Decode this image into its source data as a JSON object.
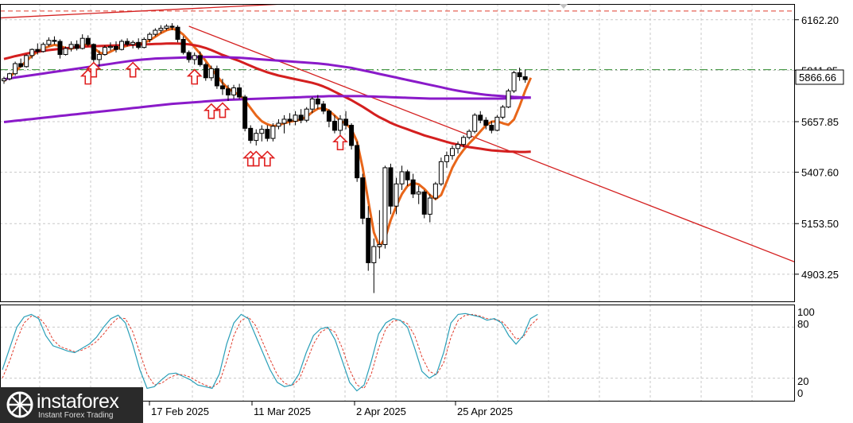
{
  "chart_data": {
    "type": "candlestick",
    "y_axis": {
      "ticks": [
        6162.2,
        5911.95,
        5657.85,
        5407.6,
        5153.5,
        4903.25
      ],
      "tick_labels": [
        "6162.20",
        "5911.95",
        "5657.85",
        "5407.60",
        "5153.50",
        "4903.25"
      ],
      "ylim": [
        4765,
        6240
      ]
    },
    "x_axis": {
      "tick_labels": [
        "17 Feb 2025",
        "11 Mar 2025",
        "2 Apr 2025",
        "25 Apr 2025"
      ]
    },
    "current_price": "5866.66",
    "hlines": [
      {
        "value": 6205,
        "style": "dashed",
        "color": "#e03c2c"
      },
      {
        "value": 5915,
        "style": "dashdot",
        "color": "#2e8b2e"
      }
    ],
    "candles": [
      [
        5860,
        5880,
        5845,
        5870
      ],
      [
        5870,
        5900,
        5862,
        5895
      ],
      [
        5895,
        5955,
        5885,
        5945
      ],
      [
        5945,
        5970,
        5925,
        5930
      ],
      [
        5930,
        5990,
        5925,
        5985
      ],
      [
        5985,
        6020,
        5970,
        6015
      ],
      [
        6015,
        6045,
        5990,
        6005
      ],
      [
        6005,
        6050,
        6000,
        6040
      ],
      [
        6040,
        6075,
        6030,
        6060
      ],
      [
        6060,
        6080,
        6040,
        6055
      ],
      [
        6055,
        6065,
        5970,
        5990
      ],
      [
        5990,
        6030,
        5985,
        6020
      ],
      [
        6020,
        6055,
        6005,
        6040
      ],
      [
        6040,
        6060,
        6010,
        6020
      ],
      [
        6020,
        6090,
        6015,
        6070
      ],
      [
        6070,
        6085,
        6030,
        6040
      ],
      [
        6040,
        6045,
        5950,
        5965
      ],
      [
        5965,
        6010,
        5930,
        5990
      ],
      [
        5990,
        6035,
        5985,
        6025
      ],
      [
        6025,
        6050,
        6010,
        6030
      ],
      [
        6030,
        6055,
        6000,
        6015
      ],
      [
        6015,
        6065,
        6010,
        6055
      ],
      [
        6055,
        6070,
        6030,
        6040
      ],
      [
        6040,
        6060,
        6020,
        6050
      ],
      [
        6050,
        6070,
        6015,
        6025
      ],
      [
        6025,
        6075,
        6020,
        6065
      ],
      [
        6065,
        6100,
        6050,
        6090
      ],
      [
        6090,
        6120,
        6080,
        6110
      ],
      [
        6110,
        6135,
        6095,
        6120
      ],
      [
        6120,
        6140,
        6110,
        6130
      ],
      [
        6130,
        6145,
        6110,
        6125
      ],
      [
        6125,
        6135,
        6050,
        6065
      ],
      [
        6065,
        6080,
        5990,
        6000
      ],
      [
        6000,
        6010,
        5950,
        5965
      ],
      [
        5965,
        6000,
        5940,
        5985
      ],
      [
        5985,
        6005,
        5930,
        5940
      ],
      [
        5940,
        5950,
        5860,
        5875
      ],
      [
        5875,
        5935,
        5860,
        5920
      ],
      [
        5920,
        5935,
        5820,
        5835
      ],
      [
        5835,
        5870,
        5790,
        5820
      ],
      [
        5820,
        5840,
        5760,
        5790
      ],
      [
        5790,
        5840,
        5770,
        5825
      ],
      [
        5825,
        5845,
        5770,
        5780
      ],
      [
        5780,
        5790,
        5610,
        5625
      ],
      [
        5625,
        5640,
        5550,
        5565
      ],
      [
        5565,
        5620,
        5540,
        5600
      ],
      [
        5600,
        5640,
        5560,
        5620
      ],
      [
        5620,
        5640,
        5560,
        5575
      ],
      [
        5575,
        5650,
        5560,
        5635
      ],
      [
        5635,
        5670,
        5620,
        5650
      ],
      [
        5650,
        5690,
        5600,
        5670
      ],
      [
        5670,
        5700,
        5640,
        5660
      ],
      [
        5660,
        5710,
        5640,
        5690
      ],
      [
        5690,
        5720,
        5650,
        5665
      ],
      [
        5665,
        5730,
        5655,
        5720
      ],
      [
        5720,
        5780,
        5700,
        5770
      ],
      [
        5770,
        5790,
        5720,
        5745
      ],
      [
        5745,
        5760,
        5695,
        5710
      ],
      [
        5710,
        5720,
        5630,
        5660
      ],
      [
        5660,
        5690,
        5600,
        5615
      ],
      [
        5615,
        5690,
        5570,
        5670
      ],
      [
        5670,
        5710,
        5620,
        5640
      ],
      [
        5640,
        5650,
        5520,
        5540
      ],
      [
        5540,
        5560,
        5360,
        5380
      ],
      [
        5380,
        5400,
        5150,
        5180
      ],
      [
        5180,
        5240,
        4920,
        4960
      ],
      [
        4960,
        5080,
        4810,
        5040
      ],
      [
        5040,
        5220,
        4980,
        5050
      ],
      [
        5050,
        5440,
        5030,
        5430
      ],
      [
        5430,
        5450,
        5200,
        5240
      ],
      [
        5240,
        5380,
        5200,
        5350
      ],
      [
        5350,
        5440,
        5320,
        5410
      ],
      [
        5410,
        5420,
        5340,
        5370
      ],
      [
        5370,
        5400,
        5280,
        5300
      ],
      [
        5300,
        5340,
        5250,
        5310
      ],
      [
        5310,
        5320,
        5180,
        5200
      ],
      [
        5200,
        5300,
        5160,
        5280
      ],
      [
        5280,
        5360,
        5270,
        5350
      ],
      [
        5350,
        5480,
        5340,
        5460
      ],
      [
        5460,
        5510,
        5430,
        5490
      ],
      [
        5490,
        5540,
        5470,
        5525
      ],
      [
        5525,
        5560,
        5500,
        5545
      ],
      [
        5545,
        5590,
        5530,
        5580
      ],
      [
        5580,
        5620,
        5570,
        5610
      ],
      [
        5610,
        5700,
        5600,
        5690
      ],
      [
        5690,
        5710,
        5650,
        5665
      ],
      [
        5665,
        5680,
        5620,
        5640
      ],
      [
        5640,
        5660,
        5600,
        5615
      ],
      [
        5615,
        5690,
        5610,
        5680
      ],
      [
        5680,
        5740,
        5670,
        5730
      ],
      [
        5730,
        5820,
        5725,
        5810
      ],
      [
        5810,
        5910,
        5800,
        5900
      ],
      [
        5900,
        5925,
        5860,
        5880
      ],
      [
        5880,
        5915,
        5850,
        5866
      ]
    ],
    "overlays": [
      {
        "type": "moving_average",
        "color": "#e8661a",
        "values": [
          5860,
          5878,
          5905,
          5932,
          5958,
          5984,
          6004,
          6018,
          6030,
          6038,
          6032,
          6022,
          6019,
          6026,
          6035,
          6040,
          6024,
          6000,
          5992,
          6004,
          6018,
          6026,
          6034,
          6040,
          6042,
          6048,
          6060,
          6078,
          6096,
          6110,
          6118,
          6110,
          6088,
          6058,
          6026,
          5994,
          5958,
          5920,
          5885,
          5850,
          5822,
          5805,
          5790,
          5762,
          5725,
          5688,
          5660,
          5645,
          5636,
          5640,
          5650,
          5658,
          5662,
          5668,
          5682,
          5705,
          5722,
          5726,
          5712,
          5688,
          5662,
          5648,
          5620,
          5560,
          5430,
          5265,
          5110,
          5040,
          5080,
          5170,
          5240,
          5300,
          5340,
          5355,
          5348,
          5325,
          5295,
          5275,
          5295,
          5360,
          5430,
          5480,
          5518,
          5550,
          5578,
          5610,
          5640,
          5658,
          5660,
          5650,
          5642,
          5668,
          5735,
          5810,
          5875
        ]
      },
      {
        "type": "moving_average",
        "color": "#d41f1f",
        "values": [
          5968,
          5975,
          5982,
          5988,
          5994,
          6000,
          6004,
          6008,
          6012,
          6015,
          6018,
          6021,
          6024,
          6026,
          6028,
          6030,
          6031,
          6032,
          6033,
          6034,
          6035,
          6036,
          6037,
          6038,
          6039,
          6040,
          6041,
          6042,
          6043,
          6044,
          6045,
          6044,
          6043,
          6040,
          6036,
          6030,
          6022,
          6012,
          6000,
          5988,
          5978,
          5968,
          5958,
          5946,
          5934,
          5922,
          5912,
          5902,
          5894,
          5886,
          5880,
          5874,
          5868,
          5862,
          5856,
          5850,
          5842,
          5832,
          5820,
          5806,
          5792,
          5778,
          5764,
          5748,
          5732,
          5714,
          5696,
          5680,
          5666,
          5652,
          5640,
          5630,
          5620,
          5610,
          5600,
          5590,
          5582,
          5574,
          5566,
          5558,
          5550,
          5544,
          5538,
          5532,
          5528,
          5524,
          5520,
          5516,
          5514,
          5512,
          5510,
          5509,
          5508,
          5508,
          5509
        ]
      },
      {
        "type": "moving_average",
        "color": "#8a1ac9",
        "values": [
          5868,
          5872,
          5876,
          5880,
          5884,
          5888,
          5892,
          5896,
          5900,
          5904,
          5908,
          5912,
          5916,
          5920,
          5924,
          5928,
          5932,
          5936,
          5940,
          5944,
          5948,
          5952,
          5956,
          5960,
          5963,
          5966,
          5968,
          5970,
          5971,
          5972,
          5973,
          5974,
          5975,
          5976,
          5977,
          5978,
          5978,
          5978,
          5978,
          5977,
          5976,
          5975,
          5974,
          5972,
          5970,
          5968,
          5966,
          5964,
          5962,
          5960,
          5958,
          5956,
          5954,
          5952,
          5950,
          5948,
          5946,
          5943,
          5940,
          5936,
          5932,
          5928,
          5924,
          5918,
          5912,
          5906,
          5900,
          5894,
          5888,
          5882,
          5876,
          5870,
          5864,
          5858,
          5852,
          5846,
          5840,
          5834,
          5828,
          5822,
          5816,
          5811,
          5806,
          5802,
          5798,
          5794,
          5791,
          5788,
          5786,
          5784,
          5782,
          5780,
          5779,
          5778,
          5777
        ]
      },
      {
        "type": "moving_average",
        "color": "#8a1ac9",
        "values": [
          5656,
          5659,
          5662,
          5665,
          5668,
          5671,
          5674,
          5677,
          5680,
          5683,
          5686,
          5689,
          5692,
          5695,
          5698,
          5701,
          5704,
          5707,
          5710,
          5713,
          5716,
          5719,
          5722,
          5725,
          5728,
          5731,
          5734,
          5737,
          5740,
          5743,
          5746,
          5748,
          5750,
          5752,
          5754,
          5756,
          5758,
          5760,
          5762,
          5764,
          5766,
          5767,
          5768,
          5769,
          5770,
          5771,
          5772,
          5773,
          5774,
          5775,
          5776,
          5777,
          5778,
          5779,
          5780,
          5781,
          5782,
          5783,
          5784,
          5784,
          5784,
          5784,
          5784,
          5784,
          5784,
          5783,
          5782,
          5781,
          5780,
          5779,
          5778,
          5777,
          5776,
          5775,
          5774,
          5773,
          5772,
          5772,
          5772,
          5772,
          5772,
          5772,
          5772,
          5772,
          5772,
          5772,
          5772,
          5772,
          5772,
          5772,
          5773,
          5774,
          5775,
          5776,
          5777
        ]
      }
    ],
    "trendlines": [
      {
        "color": "#d41f1f",
        "from": {
          "bar": 33,
          "value": 6130
        },
        "to": {
          "bar": 160,
          "value": 4760
        }
      },
      {
        "color": "#d41f1f",
        "from": {
          "bar": -5,
          "value": 6165
        },
        "to": {
          "bar": 50,
          "value": 6240
        }
      }
    ],
    "buy_arrows": [
      {
        "bar": 15,
        "value": 5915
      },
      {
        "bar": 16,
        "value": 5950
      },
      {
        "bar": 23,
        "value": 5950
      },
      {
        "bar": 34,
        "value": 5915
      },
      {
        "bar": 37,
        "value": 5745
      },
      {
        "bar": 39,
        "value": 5750
      },
      {
        "bar": 44,
        "value": 5510
      },
      {
        "bar": 45,
        "value": 5510
      },
      {
        "bar": 47,
        "value": 5510
      },
      {
        "bar": 60,
        "value": 5590
      }
    ],
    "stochastic": {
      "levels": [
        100,
        80,
        20,
        0
      ],
      "level_labels": [
        "100",
        "80",
        "20",
        "0"
      ],
      "main_color": "#2a9fb8",
      "signal_color": "#e03c2c",
      "main": [
        30,
        55,
        80,
        92,
        95,
        90,
        70,
        58,
        55,
        52,
        50,
        55,
        60,
        68,
        80,
        90,
        94,
        85,
        60,
        30,
        8,
        10,
        18,
        25,
        26,
        22,
        18,
        12,
        10,
        8,
        25,
        60,
        85,
        95,
        90,
        70,
        50,
        30,
        15,
        10,
        12,
        25,
        50,
        70,
        78,
        80,
        65,
        40,
        15,
        5,
        12,
        40,
        72,
        85,
        90,
        88,
        80,
        55,
        28,
        20,
        25,
        50,
        85,
        95,
        96,
        94,
        92,
        88,
        90,
        85,
        70,
        60,
        70,
        90,
        95
      ],
      "signal": [
        20,
        40,
        65,
        85,
        93,
        92,
        82,
        65,
        57,
        54,
        51,
        53,
        57,
        63,
        72,
        83,
        91,
        90,
        75,
        50,
        25,
        12,
        14,
        20,
        24,
        24,
        21,
        16,
        12,
        9,
        15,
        40,
        70,
        88,
        92,
        82,
        62,
        42,
        24,
        14,
        11,
        18,
        38,
        60,
        74,
        79,
        74,
        55,
        30,
        12,
        8,
        25,
        55,
        78,
        87,
        88,
        84,
        70,
        45,
        28,
        24,
        38,
        68,
        88,
        94,
        95,
        93,
        90,
        89,
        87,
        78,
        66,
        68,
        82,
        90
      ]
    },
    "watermark": {
      "brand": "instaforex",
      "tagline": "Instant Forex Trading"
    }
  }
}
